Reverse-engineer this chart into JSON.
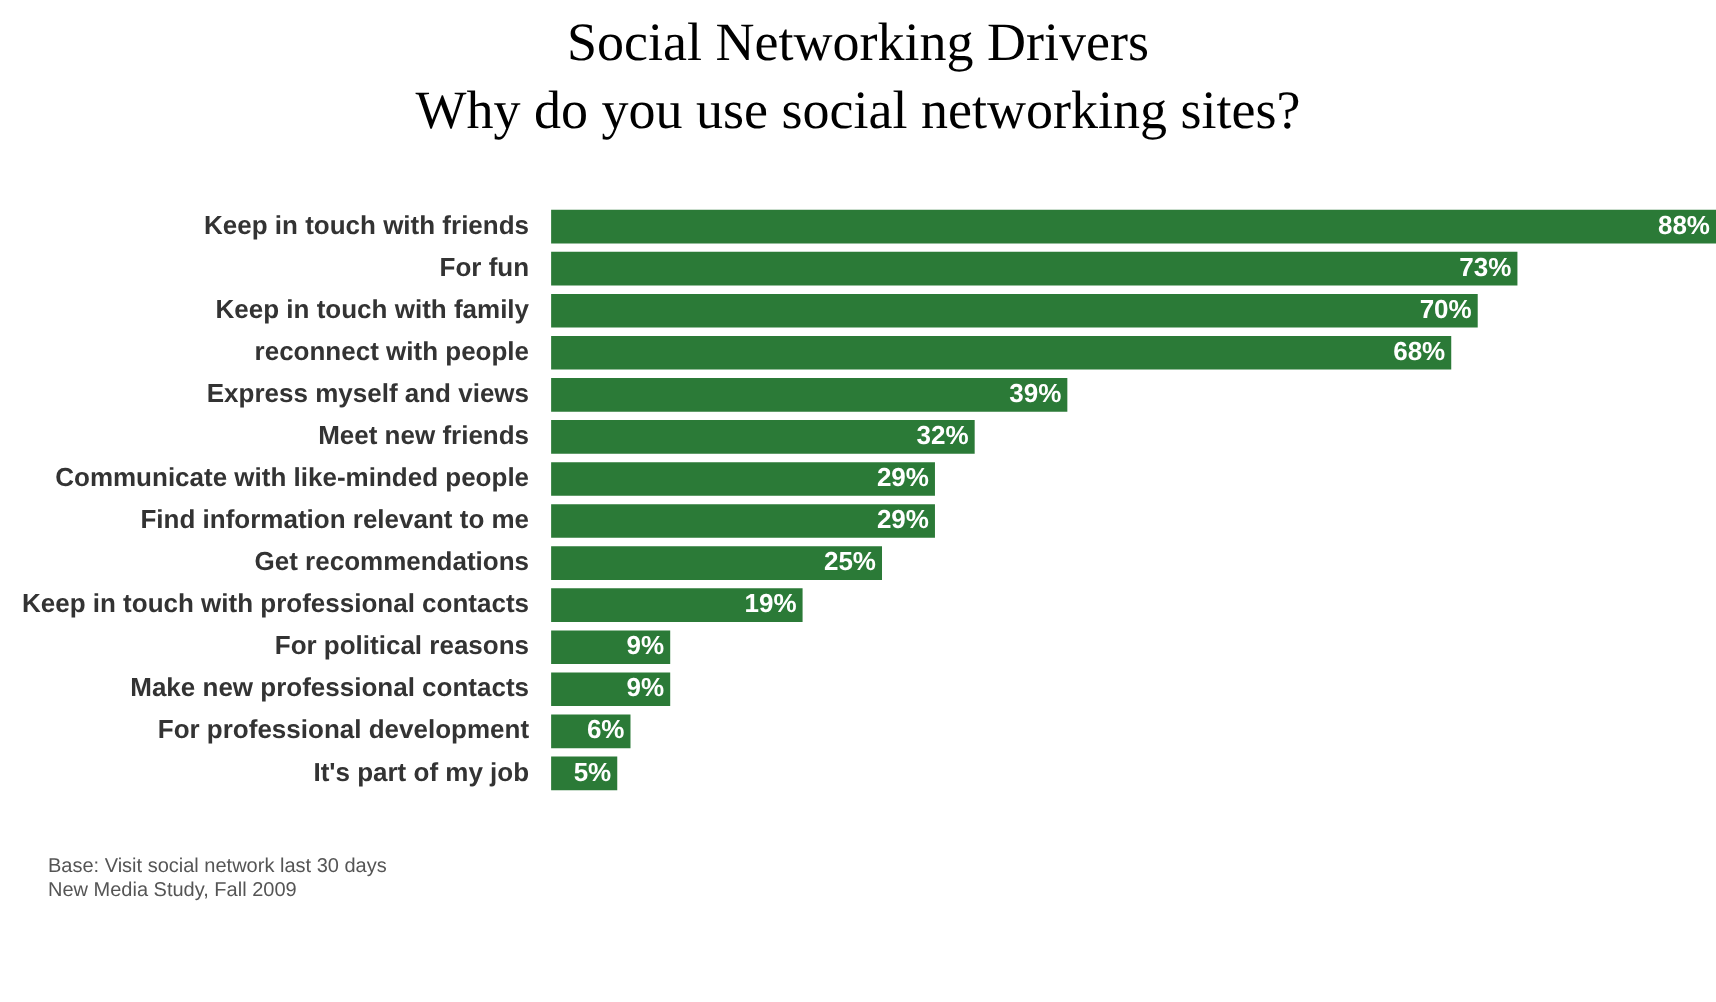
{
  "chart_data": {
    "type": "bar",
    "orientation": "horizontal",
    "title": "Social Networking Drivers",
    "subtitle": "Why do you use social networking sites?",
    "categories": [
      "Keep in touch with friends",
      "For fun",
      "Keep in touch with family",
      "reconnect with people",
      "Express myself and views",
      "Meet new friends",
      "Communicate with like-minded people",
      "Find information relevant to me",
      "Get recommendations",
      "Keep in touch with professional contacts",
      "For political reasons",
      "Make new professional contacts",
      "For professional development",
      "It's part of my job"
    ],
    "values": [
      88,
      73,
      70,
      68,
      39,
      32,
      29,
      29,
      25,
      19,
      9,
      9,
      6,
      5
    ],
    "value_labels": [
      "88%",
      "73%",
      "70%",
      "68%",
      "39%",
      "32%",
      "29%",
      "29%",
      "25%",
      "19%",
      "9%",
      "9%",
      "6%",
      "5%"
    ],
    "color": "#2b7a37",
    "annotations": [
      "Base: Visit social network last 30 days",
      "New Media Study, Fall 2009"
    ]
  }
}
